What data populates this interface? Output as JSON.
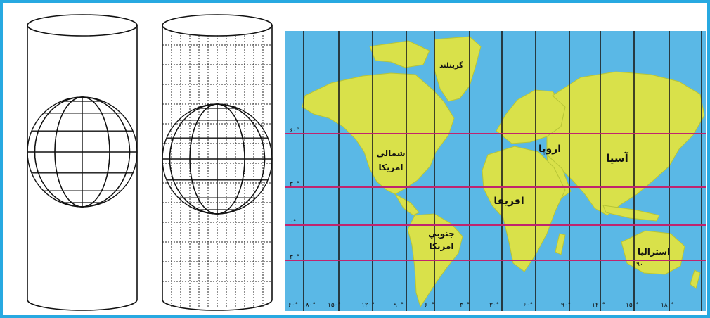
{
  "continents": {
    "greenland": "گرینلند",
    "north_america_1": "شمالی",
    "north_america_2": "امریکا",
    "europe": "اروپا",
    "asia": "آسیا",
    "africa": "افریقا",
    "south_america_1": "جنوبي",
    "south_america_2": "امریکا",
    "australia": "استراليا"
  },
  "lat_ticks": [
    "۶۰°",
    "۳۰°",
    "۰°",
    "۳۰°"
  ],
  "lon_ticks": [
    "۶۰°",
    "۱۸۰°",
    "۱۵۰°",
    "۱۲۰°",
    "۹۰°",
    "۶۰°",
    "۳۰°",
    "۳۰°",
    "۶۰°",
    "۹۰°",
    "۱۲۰°",
    "۱۵۰°",
    "۱۸۰°"
  ],
  "australia_sub": "۹۰",
  "colors": {
    "border": "#27a9e1",
    "ocean": "#5ab8e6",
    "land": "#d9e14a",
    "latitude_line": "#c0246e",
    "meridian": "#1a1a1a"
  }
}
